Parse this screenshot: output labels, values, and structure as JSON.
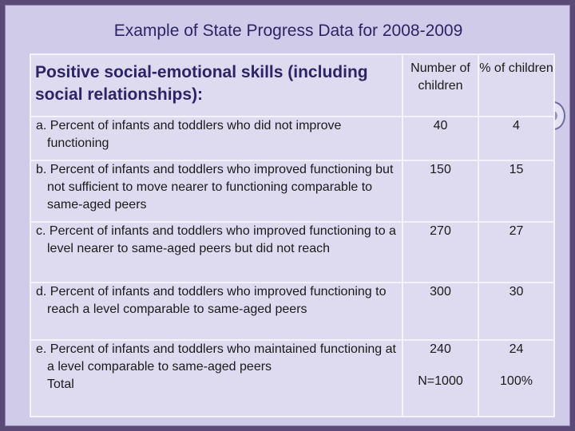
{
  "title": "Example of State Progress Data for 2008-2009",
  "table": {
    "header": {
      "outcome": "Positive social-emotional skills (including social relationships):",
      "col_number": "Number of children",
      "col_percent": "% of children"
    },
    "rows": [
      {
        "label": "a.  Percent of infants and toddlers who did not improve functioning",
        "number": "40",
        "percent": "4"
      },
      {
        "label": "b.  Percent of infants and toddlers who improved functioning but not sufficient to move nearer to functioning comparable to same-aged peers",
        "number": "150",
        "percent": "15"
      },
      {
        "label": "c.  Percent of infants and toddlers who improved functioning to a level nearer to same-aged peers but did not reach",
        "number": "270",
        "percent": "27"
      },
      {
        "label": "d.  Percent of infants and toddlers who improved functioning to reach a level comparable to same-aged peers",
        "number": "300",
        "percent": "30"
      },
      {
        "label": "e. Percent of infants and toddlers who maintained functioning at a level comparable to same-aged peers",
        "number": "240",
        "percent": "24"
      }
    ],
    "total": {
      "label": "Total",
      "number": "N=1000",
      "percent": "100%"
    }
  }
}
